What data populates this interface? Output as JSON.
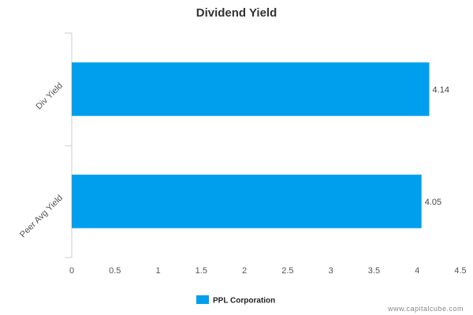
{
  "chart_data": {
    "type": "bar",
    "orientation": "horizontal",
    "title": "Dividend Yield",
    "categories": [
      "Div Yield",
      "Peer Avg Yield"
    ],
    "series": [
      {
        "name": "PPL Corporation",
        "values": [
          4.14,
          4.05
        ],
        "color": "#009fee"
      }
    ],
    "data_labels": [
      "4.14",
      "4.05"
    ],
    "xlim": [
      0,
      4.5
    ],
    "xticks": [
      "0",
      "0.5",
      "1",
      "1.5",
      "2",
      "2.5",
      "3",
      "3.5",
      "4",
      "4.5"
    ],
    "grid": false,
    "legend_position": "bottom-center"
  },
  "watermark": "www.capitalcube.com"
}
